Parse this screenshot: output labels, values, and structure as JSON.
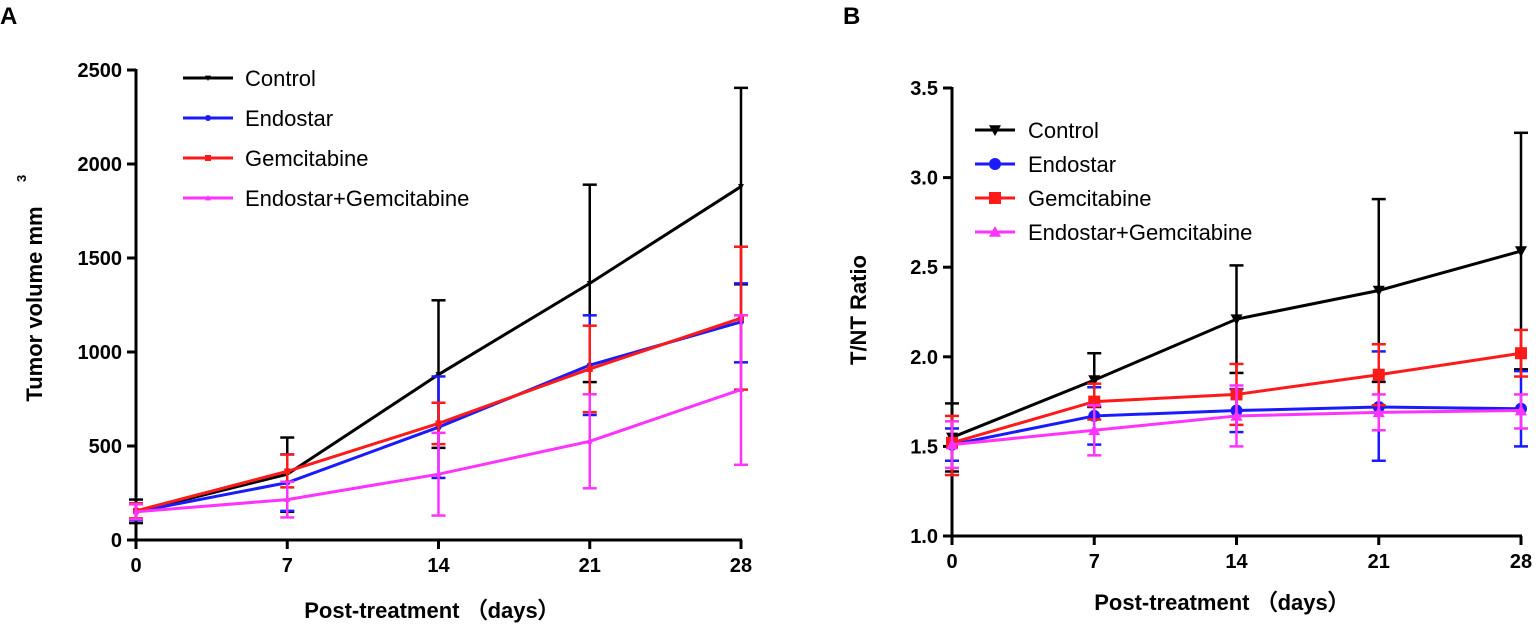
{
  "chart_data": [
    {
      "panel": "A",
      "type": "line",
      "xlabel": "Post-treatment （days）",
      "ylabel": "Tumor volume mm",
      "ylabel_superscript": "3",
      "x": [
        0,
        7,
        14,
        21,
        28
      ],
      "x_ticks": [
        "0",
        "7",
        "14",
        "21",
        "28"
      ],
      "xlim": [
        0,
        28
      ],
      "ylim": [
        0,
        2500
      ],
      "y_ticks": [
        "0",
        "500",
        "1000",
        "1500",
        "2000",
        "2500"
      ],
      "y_tick_values": [
        0,
        500,
        1000,
        1500,
        2000,
        2500
      ],
      "legend_position": "top-left",
      "series": [
        {
          "name": "Control",
          "color": "#000000",
          "marker": "triangle-down",
          "values": [
            150,
            350,
            880,
            1365,
            1880
          ],
          "err_upper": [
            215,
            545,
            1275,
            1890,
            2405
          ],
          "err_lower": [
            90,
            150,
            490,
            840,
            1360
          ]
        },
        {
          "name": "Endostar",
          "color": "#1a1aff",
          "marker": "circle",
          "values": [
            150,
            305,
            600,
            930,
            1160
          ],
          "err_upper": [
            195,
            455,
            870,
            1195,
            1365
          ],
          "err_lower": [
            105,
            155,
            330,
            665,
            945
          ]
        },
        {
          "name": "Gemcitabine",
          "color": "#ff1a1a",
          "marker": "square",
          "values": [
            155,
            365,
            620,
            910,
            1180
          ],
          "err_upper": [
            195,
            455,
            730,
            1140,
            1560
          ],
          "err_lower": [
            115,
            280,
            510,
            680,
            800
          ]
        },
        {
          "name": "Endostar+Gemcitabine",
          "color": "#ff33ff",
          "marker": "triangle-up",
          "values": [
            150,
            215,
            350,
            525,
            800
          ],
          "err_upper": [
            190,
            310,
            570,
            775,
            1195
          ],
          "err_lower": [
            110,
            120,
            130,
            275,
            400
          ]
        }
      ]
    },
    {
      "panel": "B",
      "type": "line",
      "xlabel": "Post-treatment （days）",
      "ylabel": "T/NT Ratio",
      "x": [
        0,
        7,
        14,
        21,
        28
      ],
      "x_ticks": [
        "0",
        "7",
        "14",
        "21",
        "28"
      ],
      "xlim": [
        0,
        28
      ],
      "ylim": [
        1.0,
        3.5
      ],
      "y_ticks": [
        "1.0",
        "1.5",
        "2.0",
        "2.5",
        "3.0",
        "3.5"
      ],
      "y_tick_values": [
        1.0,
        1.5,
        2.0,
        2.5,
        3.0,
        3.5
      ],
      "legend_position": "top-left",
      "series": [
        {
          "name": "Control",
          "color": "#000000",
          "marker": "triangle-down",
          "values": [
            1.55,
            1.87,
            2.21,
            2.37,
            2.59
          ],
          "err_upper": [
            1.74,
            2.02,
            2.51,
            2.88,
            3.25
          ],
          "err_lower": [
            1.36,
            1.72,
            1.91,
            1.86,
            1.93
          ]
        },
        {
          "name": "Endostar",
          "color": "#1a1aff",
          "marker": "circle",
          "values": [
            1.51,
            1.67,
            1.7,
            1.72,
            1.71
          ],
          "err_upper": [
            1.6,
            1.83,
            1.82,
            2.03,
            1.92
          ],
          "err_lower": [
            1.42,
            1.51,
            1.58,
            1.42,
            1.5
          ]
        },
        {
          "name": "Gemcitabine",
          "color": "#ff1a1a",
          "marker": "square",
          "values": [
            1.52,
            1.75,
            1.79,
            1.9,
            2.02
          ],
          "err_upper": [
            1.67,
            1.85,
            1.96,
            2.07,
            2.15
          ],
          "err_lower": [
            1.34,
            1.65,
            1.62,
            1.73,
            1.89
          ]
        },
        {
          "name": "Endostar+Gemcitabine",
          "color": "#ff33ff",
          "marker": "triangle-up",
          "values": [
            1.51,
            1.59,
            1.67,
            1.69,
            1.7
          ],
          "err_upper": [
            1.64,
            1.73,
            1.84,
            1.79,
            1.79
          ],
          "err_lower": [
            1.38,
            1.45,
            1.5,
            1.59,
            1.6
          ]
        }
      ]
    }
  ]
}
